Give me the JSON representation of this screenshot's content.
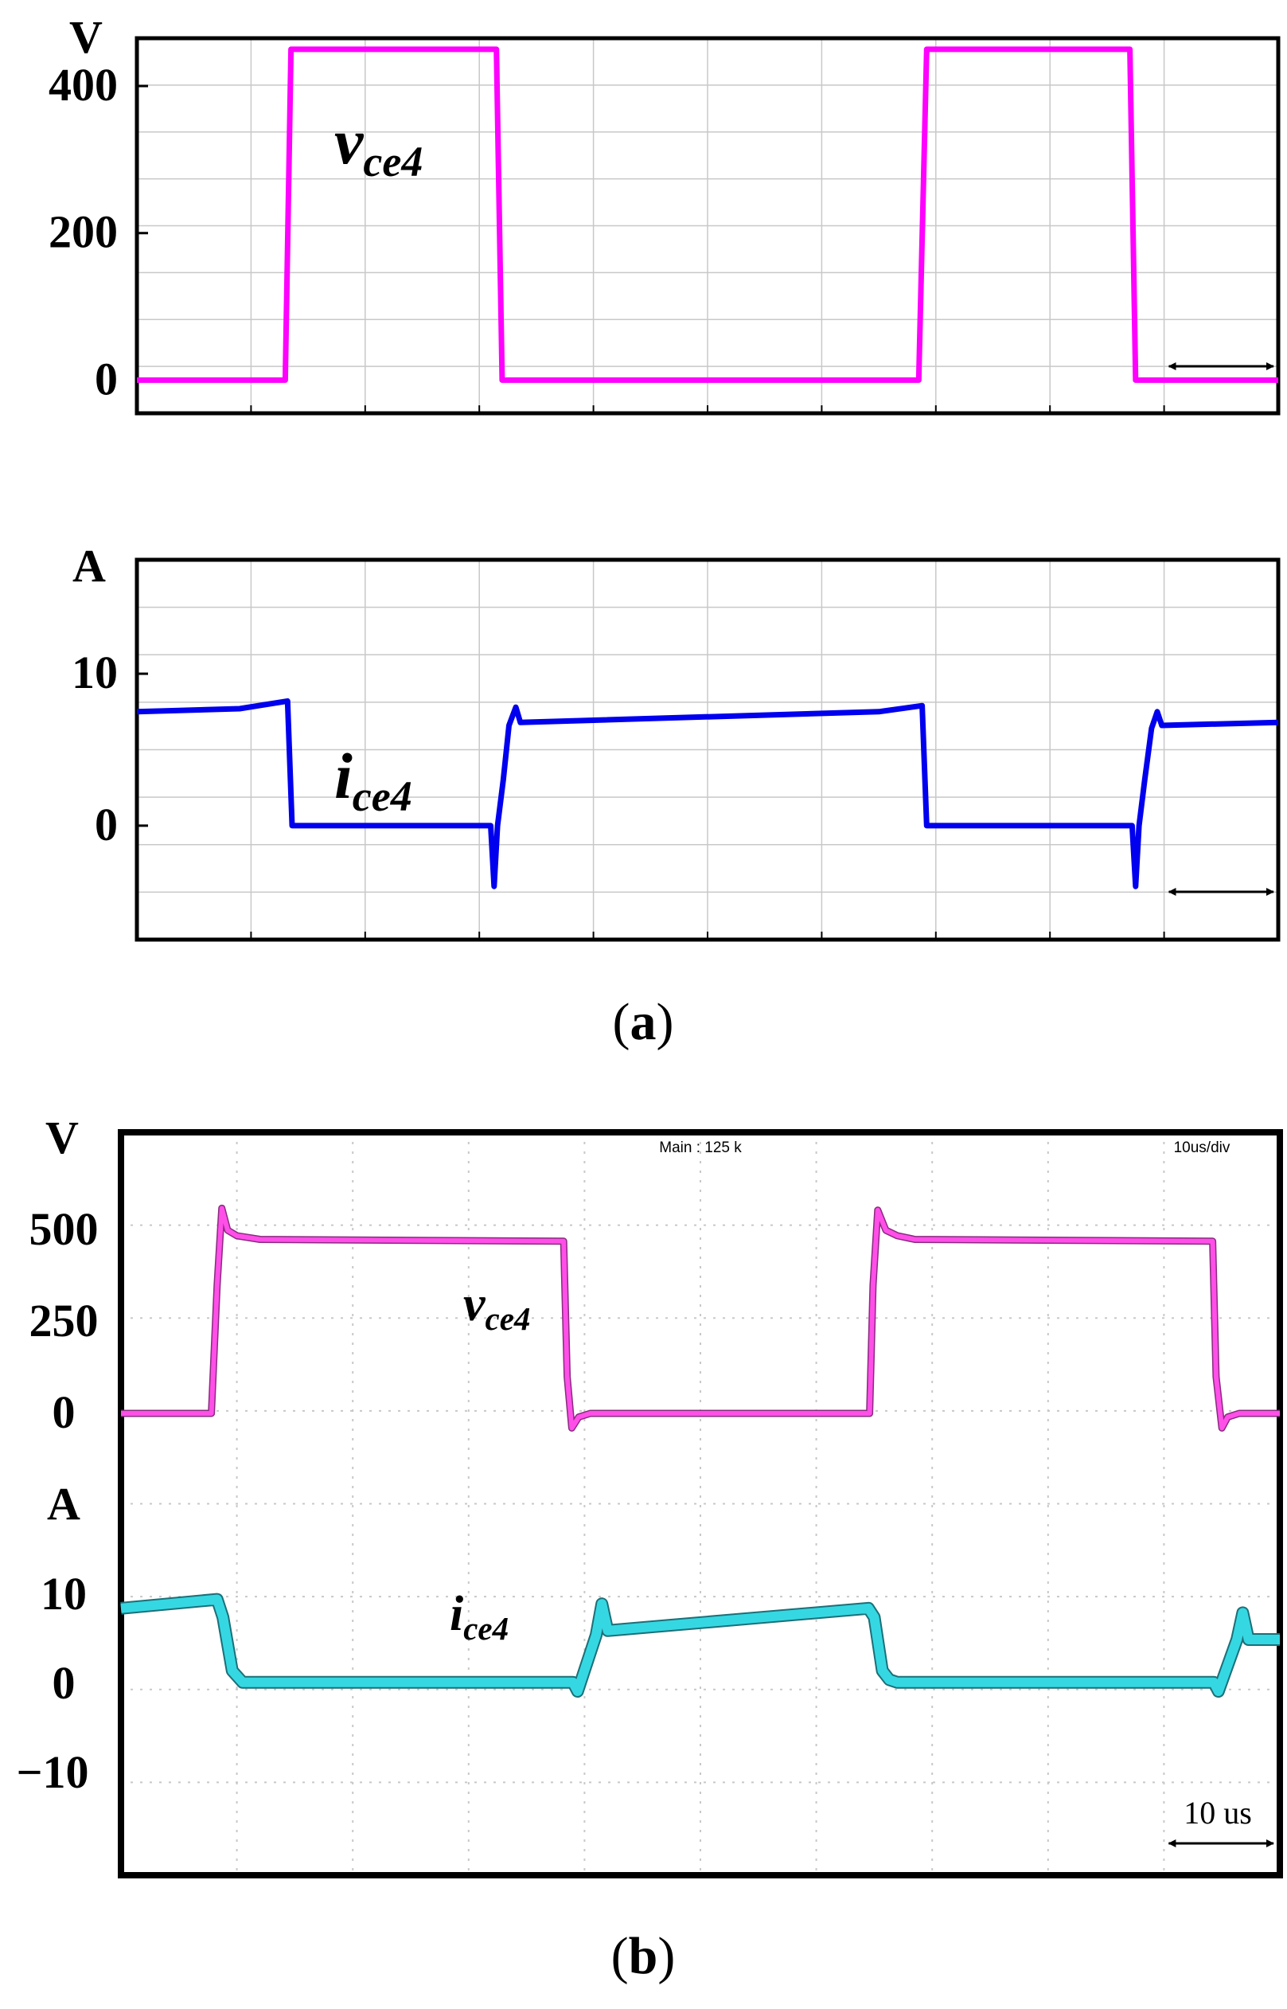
{
  "figure": {
    "caption_a": "a",
    "caption_b": "b"
  },
  "colors": {
    "vce_sim": "#ff00ff",
    "ice_sim": "#0000ee",
    "vce_meas": "#ff4fe8",
    "ice_meas": "#35d8e2",
    "frame": "#000000",
    "grid": "#c8c8c8"
  },
  "chart_data": [
    {
      "id": "a-voltage",
      "type": "line",
      "panel": "a",
      "ylabel": "V",
      "ylim": [
        -45,
        465
      ],
      "yticks": [
        0,
        200,
        400
      ],
      "x_unit": "us",
      "xlim": [
        0,
        100
      ],
      "grid": true,
      "series": [
        {
          "name": "vce4",
          "label_main": "v",
          "label_sub": "ce4",
          "color": "#ff00ff",
          "x": [
            0,
            13,
            13.5,
            31.5,
            32,
            68.5,
            69.2,
            87,
            87.5,
            100
          ],
          "y": [
            0,
            0,
            450,
            450,
            0,
            0,
            450,
            450,
            0,
            0
          ]
        }
      ],
      "scale_marker": {
        "from": 90,
        "to": 100,
        "text": ""
      }
    },
    {
      "id": "a-current",
      "type": "line",
      "panel": "a",
      "ylabel": "A",
      "ylim": [
        -7.5,
        17.5
      ],
      "yticks": [
        0,
        10
      ],
      "x_unit": "us",
      "xlim": [
        0,
        100
      ],
      "grid": true,
      "series": [
        {
          "name": "ice4",
          "label_main": "i",
          "label_sub": "ce4",
          "color": "#0000ee",
          "x": [
            0,
            9,
            13.2,
            13.6,
            31,
            31.3,
            31.6,
            32.1,
            32.6,
            33.2,
            33.6,
            65,
            68.8,
            69.2,
            87.2,
            87.5,
            87.8,
            88.3,
            88.9,
            89.4,
            89.8,
            100
          ],
          "y": [
            7.5,
            7.7,
            8.2,
            0,
            0,
            -4,
            0,
            3,
            6.6,
            7.8,
            6.8,
            7.5,
            7.9,
            0,
            0,
            -4,
            0,
            3,
            6.4,
            7.5,
            6.6,
            6.8
          ]
        }
      ],
      "scale_marker": {
        "from": 90,
        "to": 100,
        "text": ""
      }
    },
    {
      "id": "b-measured",
      "type": "line",
      "panel": "b",
      "title_left": "Main : 125 k",
      "title_right": "10us/div",
      "x_unit": "us",
      "xlim": [
        0,
        100
      ],
      "grid": true,
      "upper_ylabel": "V",
      "upper_yticks": [
        0,
        250,
        500
      ],
      "lower_ylabel": "A",
      "lower_yticks": [
        -10,
        0,
        10
      ],
      "series": [
        {
          "name": "vce4",
          "label_main": "v",
          "label_sub": "ce4",
          "unit": "V",
          "color": "#ff4fe8",
          "x": [
            0,
            7.8,
            8.3,
            8.7,
            9.2,
            10,
            12,
            38.2,
            38.5,
            38.9,
            39.5,
            40.5,
            64.6,
            64.9,
            65.3,
            66,
            67,
            68.5,
            94.2,
            94.5,
            95,
            95.5,
            96.5,
            100
          ],
          "y": [
            0,
            0,
            350,
            560,
            500,
            485,
            475,
            470,
            100,
            -40,
            -10,
            0,
            0,
            350,
            555,
            500,
            485,
            475,
            470,
            100,
            -40,
            -10,
            0,
            0
          ]
        },
        {
          "name": "ice4",
          "label_main": "i",
          "label_sub": "ce4",
          "unit": "A",
          "color": "#35d8e2",
          "x": [
            0,
            8.3,
            8.8,
            9.6,
            10.5,
            39,
            39.4,
            41,
            41.5,
            42,
            64.5,
            65,
            65.7,
            66.3,
            67,
            94.3,
            94.7,
            96.3,
            96.8,
            97.3,
            100
          ],
          "y": [
            8.5,
            9.5,
            7.5,
            1.5,
            0.2,
            0.2,
            -0.8,
            5.5,
            9,
            6,
            8.5,
            7.5,
            1.5,
            0.5,
            0.2,
            0.2,
            -0.8,
            5,
            8,
            5,
            5
          ]
        }
      ],
      "scale_marker": {
        "from": 90,
        "to": 100,
        "text": "10 us"
      }
    }
  ]
}
